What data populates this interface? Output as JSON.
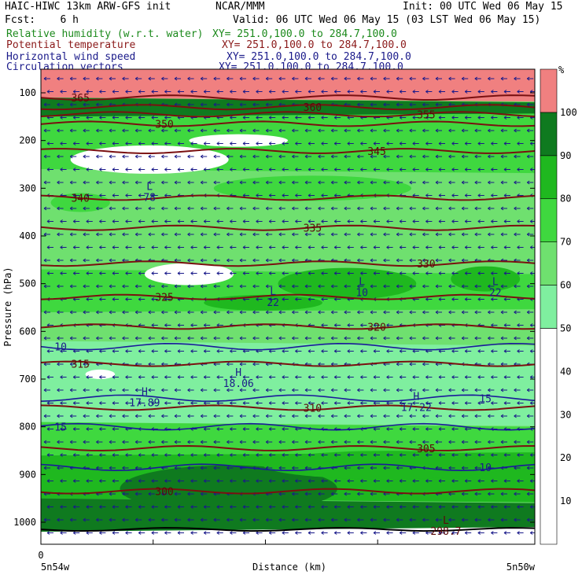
{
  "header": {
    "title_left": "HAIC-HIWC 13km ARW-GFS init",
    "title_mid": "NCAR/MMM",
    "init": "Init: 00 UTC Wed 06 May 15",
    "fcst": "Fcst:    6 h",
    "valid": "Valid: 06 UTC Wed 06 May 15 (03 LST Wed 06 May 15)",
    "fields": [
      {
        "name": "Relative humidity (w.r.t. water)",
        "xy": "XY= 251.0,100.0 to 284.7,100.0",
        "color": "#1c8a1c"
      },
      {
        "name": "Potential temperature",
        "xy": "XY= 251.0,100.0 to 284.7,100.0",
        "color": "#8b1a1a"
      },
      {
        "name": "Horizontal wind speed",
        "xy": "XY= 251.0,100.0 to 284.7,100.0",
        "color": "#1a1a8a"
      },
      {
        "name": "Circulation vectors",
        "xy": "XY= 251.0,100.0 to 284.7,100.0",
        "color": "#1a1a8a"
      }
    ]
  },
  "chart_data": {
    "type": "heatmap",
    "ylabel": "Pressure (hPa)",
    "xlabel": "Distance (km)",
    "x_start_label": "5n54w",
    "x_end_label": "5n50w",
    "x_tick_label": "0",
    "y_ticks": [
      100,
      200,
      300,
      400,
      500,
      600,
      700,
      800,
      900,
      1000
    ],
    "y_range_hpa": [
      1000,
      100
    ],
    "colorbar": {
      "unit": "%",
      "ticks": [
        10,
        20,
        30,
        40,
        50,
        60,
        70,
        80,
        90,
        100
      ],
      "bins": [
        {
          "from": 0,
          "to": 50,
          "color": "#ffffff"
        },
        {
          "from": 50,
          "to": 60,
          "color": "#7fef9f"
        },
        {
          "from": 60,
          "to": 70,
          "color": "#6fe06f"
        },
        {
          "from": 70,
          "to": 80,
          "color": "#3fd83f"
        },
        {
          "from": 80,
          "to": 90,
          "color": "#1fb81f"
        },
        {
          "from": 90,
          "to": 100,
          "color": "#0f7a1f"
        },
        {
          "from": 100,
          "to": 110,
          "color": "#f08080"
        }
      ]
    },
    "theta_contours": [
      {
        "value": 365,
        "label": "365",
        "pressure": 110
      },
      {
        "value": 360,
        "label": "360",
        "pressure": 130
      },
      {
        "value": 355,
        "label": "355",
        "pressure": 145
      },
      {
        "value": 350,
        "label": "350",
        "pressure": 165
      },
      {
        "value": 345,
        "label": "345",
        "pressure": 222
      },
      {
        "value": 340,
        "label": "340",
        "pressure": 320
      },
      {
        "value": 335,
        "label": "335",
        "pressure": 383
      },
      {
        "value": 330,
        "label": "330",
        "pressure": 458
      },
      {
        "value": 325,
        "label": "325",
        "pressure": 528
      },
      {
        "value": 320,
        "label": "320",
        "pressure": 590
      },
      {
        "value": 315,
        "label": "315",
        "pressure": 668
      },
      {
        "value": 310,
        "label": "310",
        "pressure": 760
      },
      {
        "value": 305,
        "label": "305",
        "pressure": 845
      },
      {
        "value": 300,
        "label": "300",
        "pressure": 935
      }
    ],
    "wind_contours": [
      {
        "value": 10,
        "label": "10",
        "pressure": 632
      },
      {
        "value": 15,
        "label": "15",
        "pressure": 740
      },
      {
        "value": 15,
        "label": "15",
        "pressure": 800
      },
      {
        "value": 10,
        "label": "10",
        "pressure": 885
      }
    ],
    "markers": [
      {
        "type": "L",
        "value": "78",
        "x_frac": 0.22,
        "pressure": 310
      },
      {
        "type": "L",
        "value": "22",
        "x_frac": 0.47,
        "pressure": 530
      },
      {
        "type": "L",
        "value": "10",
        "x_frac": 0.65,
        "pressure": 510
      },
      {
        "type": "L",
        "value": "22",
        "x_frac": 0.92,
        "pressure": 510
      },
      {
        "type": "H",
        "value": "18.06",
        "x_frac": 0.4,
        "pressure": 700
      },
      {
        "type": "H",
        "value": "17.89",
        "x_frac": 0.21,
        "pressure": 740
      },
      {
        "type": "H",
        "value": "17.22",
        "x_frac": 0.76,
        "pressure": 750
      },
      {
        "type": "L",
        "value": "298.7",
        "x_frac": 0.82,
        "pressure": 1010
      }
    ]
  }
}
